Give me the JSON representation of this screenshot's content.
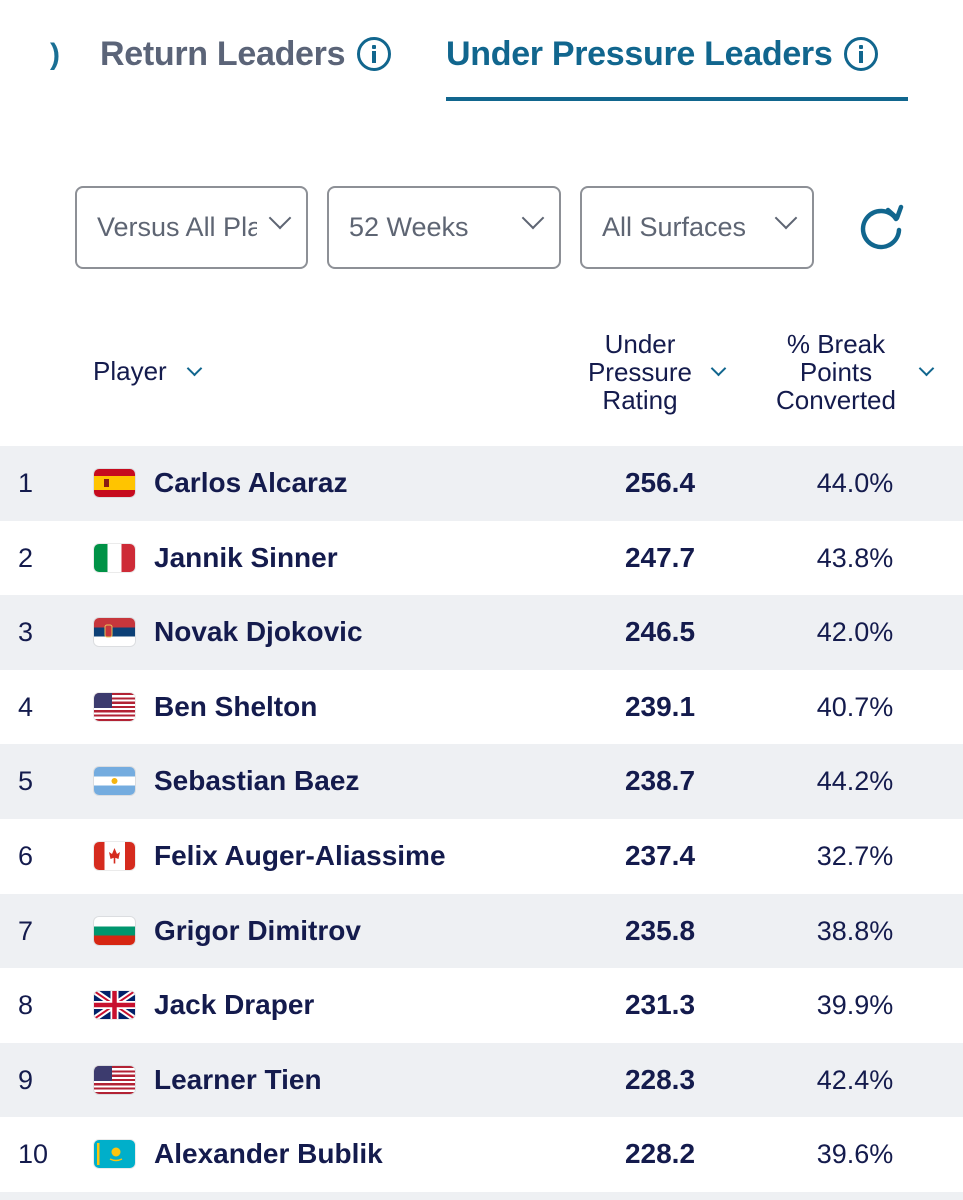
{
  "tabs": {
    "items": [
      {
        "label": "Return Leaders",
        "active": false
      },
      {
        "label": "Under Pressure Leaders",
        "active": true
      }
    ],
    "accent_color": "#11668e"
  },
  "filters": {
    "opponent": "Versus All Players",
    "period": "52 Weeks",
    "surface": "All Surfaces"
  },
  "table": {
    "columns": {
      "player": "Player",
      "rating_line1": "Under",
      "rating_line2": "Pressure",
      "rating_line3": "Rating",
      "break_line1": "% Break",
      "break_line2": "Points",
      "break_line3": "Converted"
    },
    "rows": [
      {
        "rank": "1",
        "country": "esp",
        "name": "Carlos Alcaraz",
        "rating": "256.4",
        "break_pct": "44.0%"
      },
      {
        "rank": "2",
        "country": "ita",
        "name": "Jannik Sinner",
        "rating": "247.7",
        "break_pct": "43.8%"
      },
      {
        "rank": "3",
        "country": "srb",
        "name": "Novak Djokovic",
        "rating": "246.5",
        "break_pct": "42.0%"
      },
      {
        "rank": "4",
        "country": "usa",
        "name": "Ben Shelton",
        "rating": "239.1",
        "break_pct": "40.7%"
      },
      {
        "rank": "5",
        "country": "arg",
        "name": "Sebastian Baez",
        "rating": "238.7",
        "break_pct": "44.2%"
      },
      {
        "rank": "6",
        "country": "can",
        "name": "Felix Auger-Aliassime",
        "rating": "237.4",
        "break_pct": "32.7%"
      },
      {
        "rank": "7",
        "country": "bul",
        "name": "Grigor Dimitrov",
        "rating": "235.8",
        "break_pct": "38.8%"
      },
      {
        "rank": "8",
        "country": "gbr",
        "name": "Jack Draper",
        "rating": "231.3",
        "break_pct": "39.9%"
      },
      {
        "rank": "9",
        "country": "usa",
        "name": "Learner Tien",
        "rating": "228.3",
        "break_pct": "42.4%"
      },
      {
        "rank": "10",
        "country": "kaz",
        "name": "Alexander Bublik",
        "rating": "228.2",
        "break_pct": "39.6%"
      }
    ]
  }
}
